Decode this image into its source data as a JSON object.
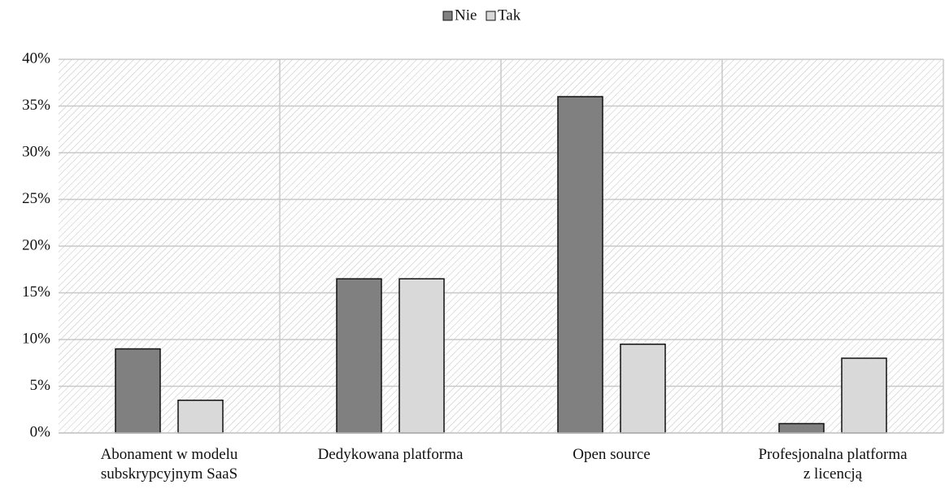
{
  "chart_data": {
    "type": "bar",
    "categories": [
      "Abonament w modelu\nsubskrypcyjnym SaaS",
      "Dedykowana platforma",
      "Open source",
      "Profesjonalna platforma\nz licencją"
    ],
    "series": [
      {
        "name": "Nie",
        "color": "#808080",
        "values": [
          9,
          16.5,
          36,
          1
        ]
      },
      {
        "name": "Tak",
        "color": "#d9d9d9",
        "values": [
          3.5,
          16.5,
          9.5,
          8
        ]
      }
    ],
    "ylim": [
      0,
      40
    ],
    "yticks": [
      {
        "value": 0,
        "label": "0%"
      },
      {
        "value": 5,
        "label": "5%"
      },
      {
        "value": 10,
        "label": "10%"
      },
      {
        "value": 15,
        "label": "15%"
      },
      {
        "value": 20,
        "label": "20%"
      },
      {
        "value": 25,
        "label": "25%"
      },
      {
        "value": 30,
        "label": "30%"
      },
      {
        "value": 35,
        "label": "35%"
      },
      {
        "value": 40,
        "label": "40%"
      }
    ],
    "grid": true,
    "legend": "top"
  }
}
